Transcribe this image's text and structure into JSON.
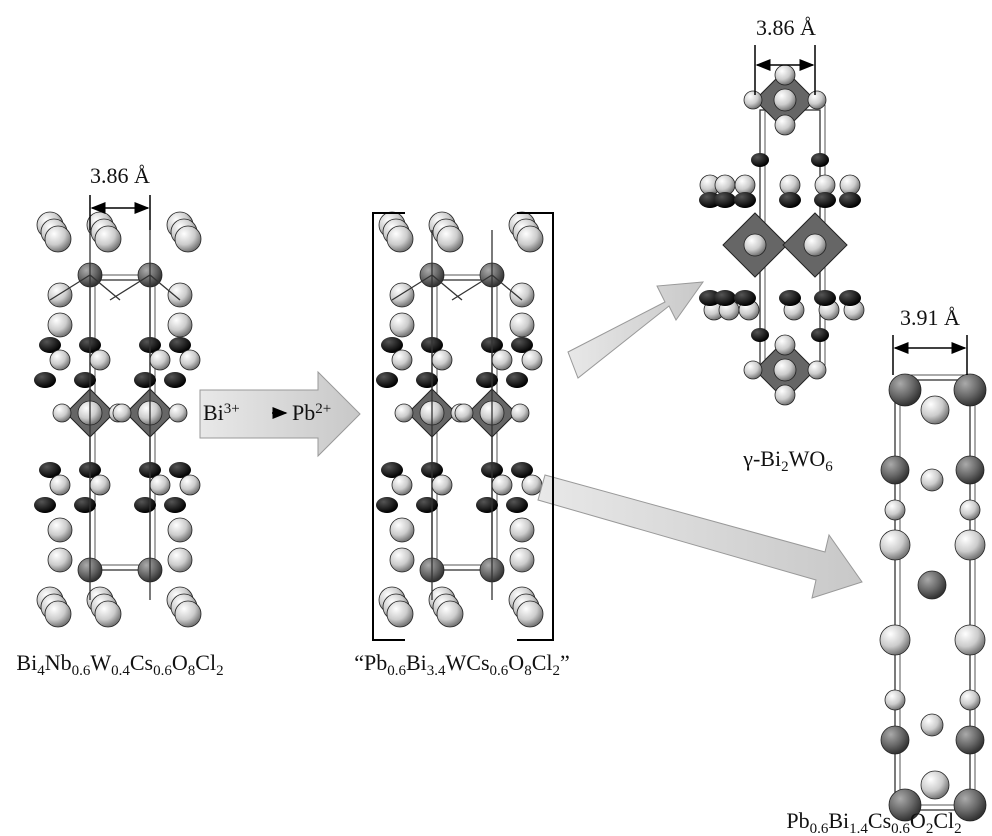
{
  "structures": [
    {
      "label": [
        {
          "text": "Bi"
        },
        {
          "sub": "4"
        },
        {
          "text": "Nb"
        },
        {
          "sub": "0.6"
        },
        {
          "text": "W"
        },
        {
          "sub": "0.4"
        },
        {
          "text": "Cs"
        },
        {
          "sub": "0.6"
        },
        {
          "text": "O"
        },
        {
          "sub": "8"
        },
        {
          "text": "Cl"
        },
        {
          "sub": "2"
        }
      ],
      "dimension": "3.86 Å"
    },
    {
      "label": [
        {
          "text": "“Pb"
        },
        {
          "sub": "0.6"
        },
        {
          "text": "Bi"
        },
        {
          "sub": "3.4"
        },
        {
          "text": "WCs"
        },
        {
          "sub": "0.6"
        },
        {
          "text": "O"
        },
        {
          "sub": "8"
        },
        {
          "text": "Cl"
        },
        {
          "sub": "2"
        },
        {
          "text": "”"
        }
      ]
    },
    {
      "label": [
        {
          "text": "γ-Bi"
        },
        {
          "sub": "2"
        },
        {
          "text": "WO"
        },
        {
          "sub": "6"
        }
      ],
      "dimension": "3.86 Å"
    },
    {
      "label": [
        {
          "text": "Pb"
        },
        {
          "sub": "0.6"
        },
        {
          "text": "Bi"
        },
        {
          "sub": "1.4"
        },
        {
          "text": "Cs"
        },
        {
          "sub": "0.6"
        },
        {
          "text": "O"
        },
        {
          "sub": "2"
        },
        {
          "text": "Cl"
        },
        {
          "sub": "2"
        }
      ],
      "dimension": "3.91 Å"
    }
  ],
  "substitution": [
    {
      "text": "Bi"
    },
    {
      "sup": "3+"
    },
    {
      "text": "Pb"
    },
    {
      "sup": "2+"
    }
  ]
}
